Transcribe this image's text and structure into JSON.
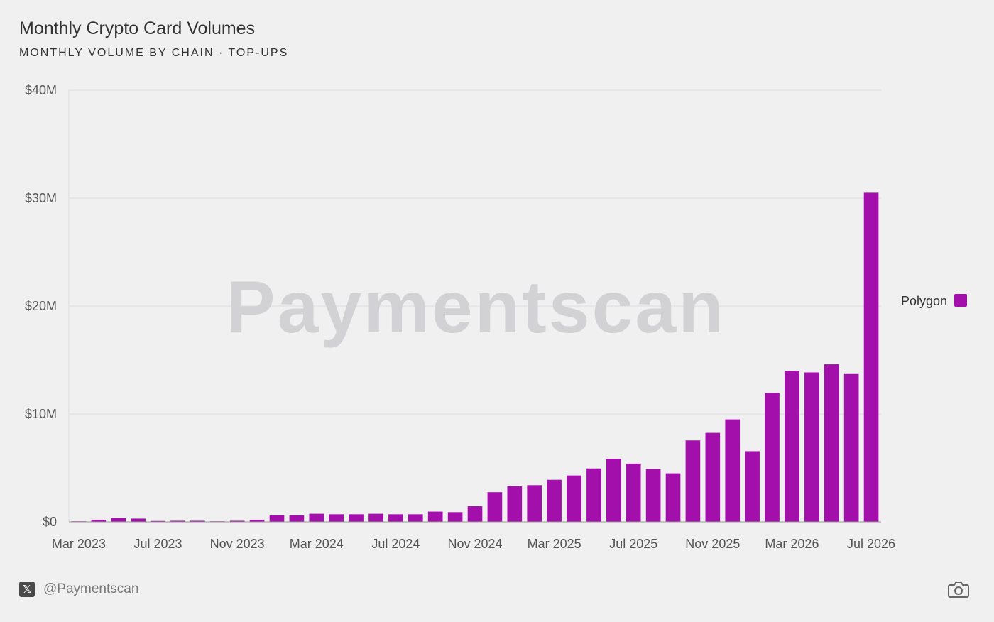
{
  "header": {
    "title": "Monthly Crypto Card Volumes",
    "subtitle": "MONTHLY VOLUME BY CHAIN · TOP-UPS"
  },
  "watermark": "Paymentscan",
  "footer": {
    "handle": "@Paymentscan",
    "x_logo_glyph": "𝕏",
    "x_logo_icon": "x-logo-icon",
    "camera_icon": "camera-icon"
  },
  "colors": {
    "series": "#a30fab",
    "grid": "#dcdcdf",
    "axis_text": "#555555"
  },
  "chart_data": {
    "type": "bar",
    "title": "Monthly Crypto Card Volumes",
    "subtitle": "MONTHLY VOLUME BY CHAIN · TOP-UPS",
    "xlabel": "",
    "ylabel": "",
    "ylim": [
      0,
      40000000
    ],
    "yticks": [
      0,
      10000000,
      20000000,
      30000000,
      40000000
    ],
    "ytick_labels": [
      "$0",
      "$10M",
      "$20M",
      "$30M",
      "$40M"
    ],
    "xtick_labels": [
      "Mar 2023",
      "Jul 2023",
      "Nov 2023",
      "Mar 2024",
      "Jul 2024",
      "Nov 2024",
      "Mar 2025",
      "Jul 2025",
      "Nov 2025",
      "Mar 2026",
      "Jul 2026"
    ],
    "xtick_every": 4,
    "legend_position": "right",
    "grid": true,
    "categories": [
      "Mar 2023",
      "Apr 2023",
      "May 2023",
      "Jun 2023",
      "Jul 2023",
      "Aug 2023",
      "Sep 2023",
      "Oct 2023",
      "Nov 2023",
      "Dec 2023",
      "Jan 2024",
      "Feb 2024",
      "Mar 2024",
      "Apr 2024",
      "May 2024",
      "Jun 2024",
      "Jul 2024",
      "Aug 2024",
      "Sep 2024",
      "Oct 2024",
      "Nov 2024",
      "Dec 2024",
      "Jan 2025",
      "Feb 2025",
      "Mar 2025",
      "Apr 2025",
      "May 2025",
      "Jun 2025",
      "Jul 2025",
      "Aug 2025",
      "Sep 2025",
      "Oct 2025",
      "Nov 2025",
      "Dec 2025",
      "Jan 2026",
      "Feb 2026",
      "Mar 2026",
      "Apr 2026",
      "May 2026",
      "Jun 2026",
      "Jul 2026"
    ],
    "series": [
      {
        "name": "Polygon",
        "color": "#a30fab",
        "values": [
          50000,
          200000,
          350000,
          300000,
          80000,
          100000,
          100000,
          40000,
          100000,
          200000,
          600000,
          600000,
          750000,
          700000,
          700000,
          750000,
          700000,
          700000,
          950000,
          900000,
          1450000,
          2750000,
          3300000,
          3400000,
          3900000,
          4300000,
          4950000,
          5850000,
          5400000,
          4900000,
          4500000,
          7550000,
          8250000,
          9500000,
          6550000,
          11950000,
          14000000,
          13850000,
          14600000,
          13700000,
          30500000
        ]
      }
    ]
  }
}
